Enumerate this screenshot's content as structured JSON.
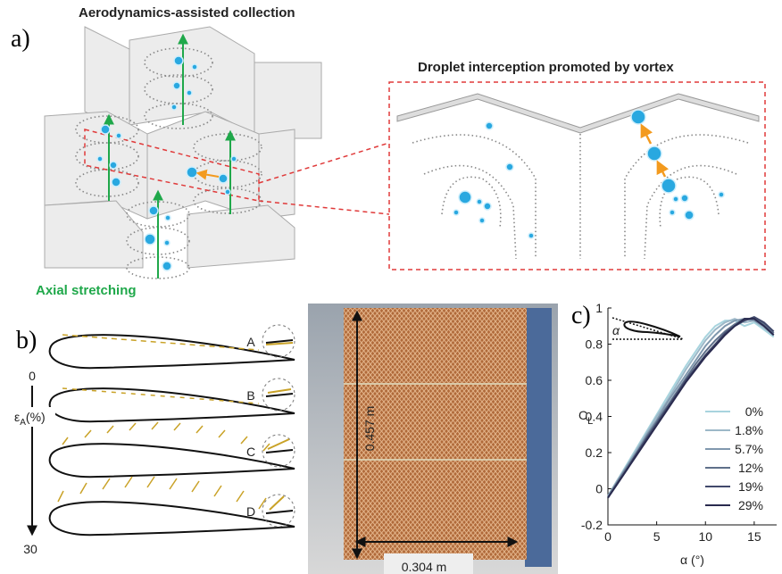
{
  "panel_a": {
    "label": "a)",
    "title": "Aerodynamics-assisted collection",
    "inset_title": "Droplet interception promoted by vortex",
    "caption": "Axial stretching"
  },
  "panel_b": {
    "label": "b)",
    "markers": [
      "A",
      "B",
      "C",
      "D"
    ],
    "axis_symbol": "ε",
    "axis_sub": "A",
    "axis_unit": "(%)",
    "axis_start": "0",
    "axis_end": "30",
    "height_label": "0.457 m",
    "width_label": "0.304 m"
  },
  "chart_data": {
    "type": "line",
    "label": "c)",
    "xlabel": "α (°)",
    "ylabel": "C",
    "ylabel_sub": "L",
    "inset_label": "α",
    "x": [
      0,
      1,
      2,
      3,
      4,
      5,
      6,
      7,
      8,
      9,
      10,
      11,
      12,
      13,
      14,
      15,
      16,
      17
    ],
    "xlim": [
      0,
      17.3
    ],
    "ylim": [
      -0.2,
      1
    ],
    "xticks": [
      0,
      5,
      10,
      15
    ],
    "yticks": [
      -0.2,
      0,
      0.2,
      0.4,
      0.6,
      0.8,
      1
    ],
    "series": [
      {
        "name": "0%",
        "color": "#a8d4de",
        "values": [
          -0.04,
          0.05,
          0.14,
          0.23,
          0.32,
          0.41,
          0.5,
          0.59,
          0.68,
          0.76,
          0.84,
          0.9,
          0.93,
          0.93,
          0.9,
          0.92,
          0.88,
          0.84
        ]
      },
      {
        "name": "1.8%",
        "color": "#9db8c8",
        "values": [
          -0.04,
          0.05,
          0.13,
          0.22,
          0.31,
          0.4,
          0.48,
          0.57,
          0.66,
          0.74,
          0.82,
          0.88,
          0.92,
          0.94,
          0.92,
          0.93,
          0.89,
          0.85
        ]
      },
      {
        "name": "5.7%",
        "color": "#8098ae",
        "values": [
          -0.04,
          0.04,
          0.13,
          0.21,
          0.3,
          0.38,
          0.47,
          0.55,
          0.63,
          0.71,
          0.79,
          0.85,
          0.9,
          0.93,
          0.94,
          0.93,
          0.9,
          0.86
        ]
      },
      {
        "name": "12%",
        "color": "#5f708a",
        "values": [
          -0.05,
          0.04,
          0.12,
          0.2,
          0.29,
          0.37,
          0.45,
          0.53,
          0.61,
          0.69,
          0.76,
          0.82,
          0.87,
          0.91,
          0.94,
          0.94,
          0.91,
          0.86
        ]
      },
      {
        "name": "19%",
        "color": "#41496b",
        "values": [
          -0.05,
          0.03,
          0.11,
          0.2,
          0.28,
          0.36,
          0.44,
          0.52,
          0.6,
          0.67,
          0.74,
          0.8,
          0.86,
          0.9,
          0.93,
          0.95,
          0.92,
          0.87
        ]
      },
      {
        "name": "29%",
        "color": "#2a2b4f",
        "values": [
          -0.05,
          0.03,
          0.11,
          0.19,
          0.27,
          0.35,
          0.43,
          0.51,
          0.59,
          0.66,
          0.73,
          0.79,
          0.85,
          0.9,
          0.94,
          0.94,
          0.9,
          0.85
        ]
      }
    ]
  }
}
